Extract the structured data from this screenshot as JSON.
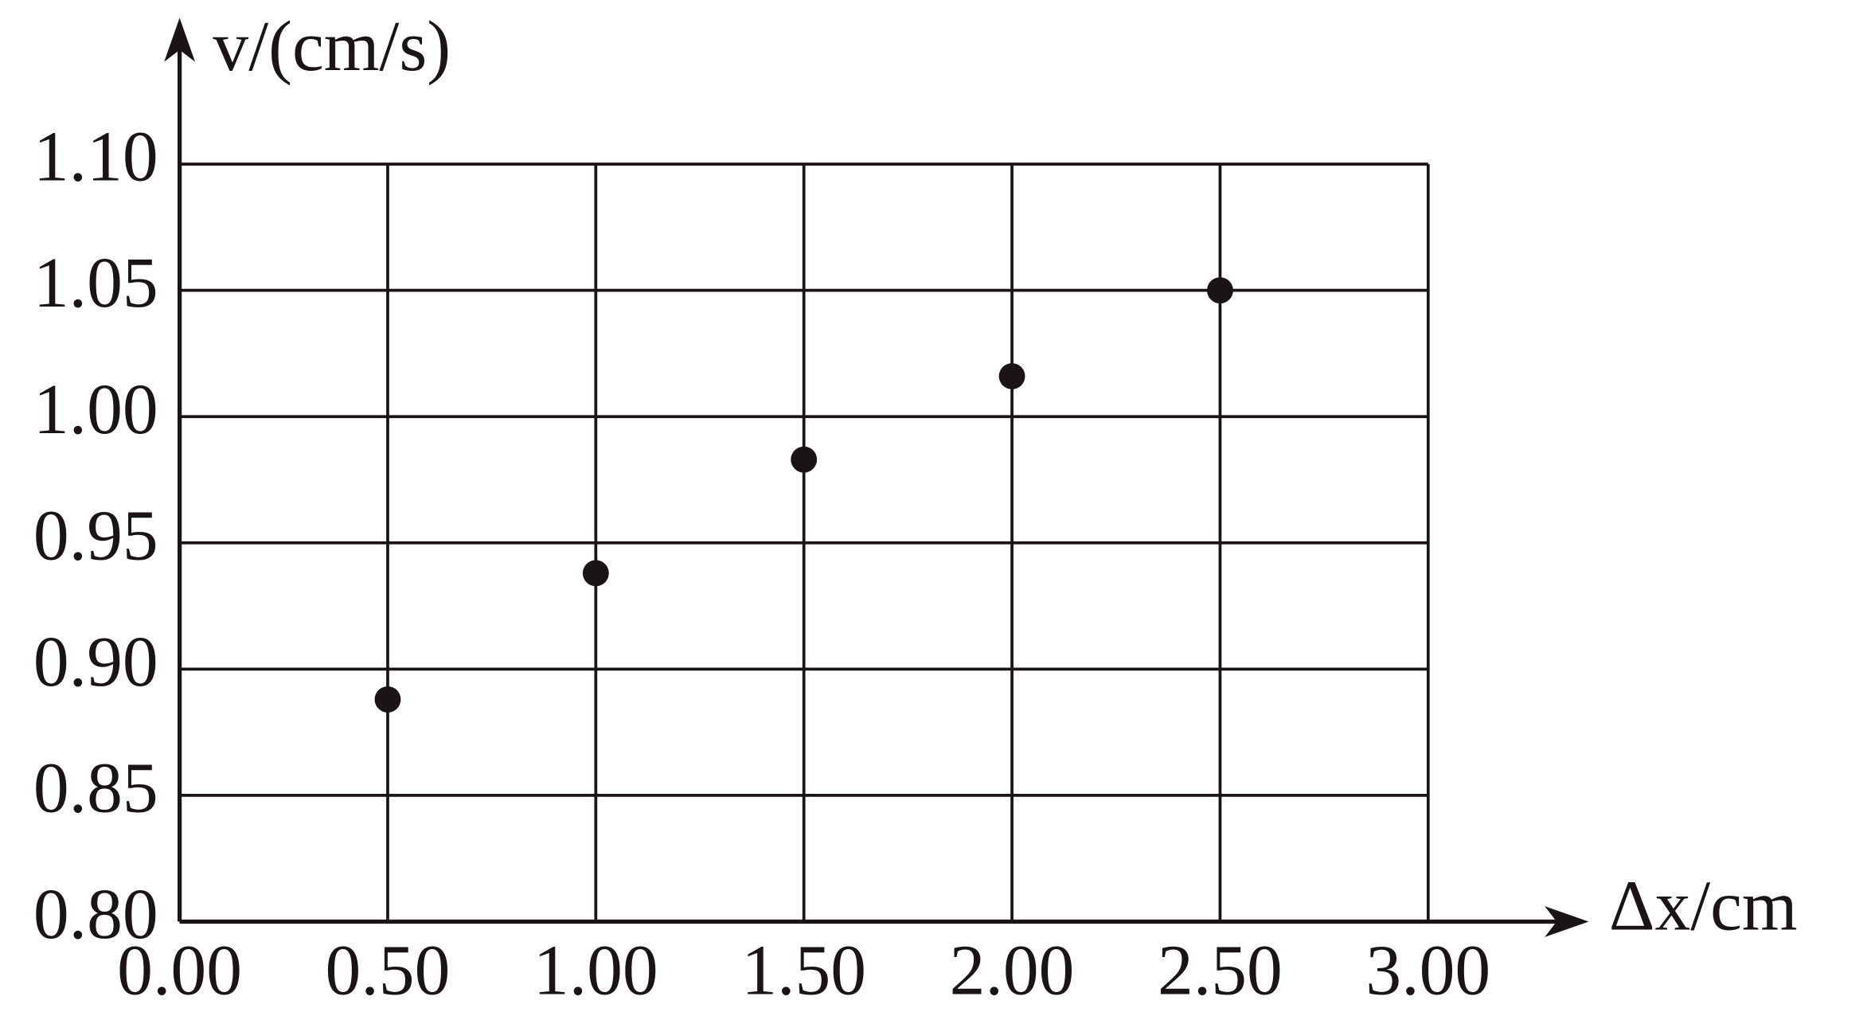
{
  "chart_data": {
    "type": "scatter",
    "x_label": "Δx/cm",
    "y_label": "v/(cm/s)",
    "x": [
      0.5,
      1.0,
      1.5,
      2.0,
      2.5
    ],
    "values": [
      0.888,
      0.938,
      0.983,
      1.016,
      1.05
    ],
    "color": "#1a1414",
    "xlim": [
      0,
      3
    ],
    "ylim": [
      0.8,
      1.1
    ],
    "xticks": [
      {
        "value": 0,
        "label": "0.00"
      },
      {
        "value": 0.5,
        "label": "0.50"
      },
      {
        "value": 1,
        "label": "1.00"
      },
      {
        "value": 1.5,
        "label": "1.50"
      },
      {
        "value": 2,
        "label": "2.00"
      },
      {
        "value": 2.5,
        "label": "2.50"
      },
      {
        "value": 3,
        "label": "3.00"
      }
    ],
    "yticks": [
      {
        "value": 0.8,
        "label": "0.80"
      },
      {
        "value": 0.85,
        "label": "0.85"
      },
      {
        "value": 0.9,
        "label": "0.90"
      },
      {
        "value": 0.95,
        "label": "0.95"
      },
      {
        "value": 1.0,
        "label": "1.00"
      },
      {
        "value": 1.05,
        "label": "1.05"
      },
      {
        "value": 1.1,
        "label": "1.10"
      }
    ],
    "grid": true
  }
}
